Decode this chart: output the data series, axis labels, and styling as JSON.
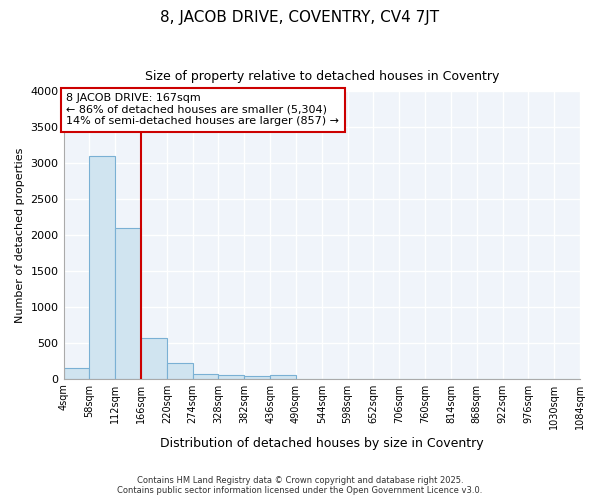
{
  "title": "8, JACOB DRIVE, COVENTRY, CV4 7JT",
  "subtitle": "Size of property relative to detached houses in Coventry",
  "xlabel": "Distribution of detached houses by size in Coventry",
  "ylabel": "Number of detached properties",
  "bar_color": "#d0e4f0",
  "bar_edge_color": "#7ab0d4",
  "background_color": "#ffffff",
  "plot_bg_color": "#f0f4fa",
  "grid_color": "#ffffff",
  "vline_x": 166,
  "vline_color": "#cc0000",
  "bins": [
    4,
    58,
    112,
    166,
    220,
    274,
    328,
    382,
    436,
    490,
    544,
    598,
    652,
    706,
    760,
    814,
    868,
    922,
    976,
    1030,
    1084
  ],
  "bin_labels": [
    "4sqm",
    "58sqm",
    "112sqm",
    "166sqm",
    "220sqm",
    "274sqm",
    "328sqm",
    "382sqm",
    "436sqm",
    "490sqm",
    "544sqm",
    "598sqm",
    "652sqm",
    "706sqm",
    "760sqm",
    "814sqm",
    "868sqm",
    "922sqm",
    "976sqm",
    "1030sqm",
    "1084sqm"
  ],
  "bar_heights": [
    140,
    3100,
    2090,
    570,
    215,
    70,
    50,
    40,
    55,
    0,
    0,
    0,
    0,
    0,
    0,
    0,
    0,
    0,
    0,
    0
  ],
  "ylim": [
    0,
    4000
  ],
  "yticks": [
    0,
    500,
    1000,
    1500,
    2000,
    2500,
    3000,
    3500,
    4000
  ],
  "annotation_title": "8 JACOB DRIVE: 167sqm",
  "annotation_line1": "← 86% of detached houses are smaller (5,304)",
  "annotation_line2": "14% of semi-detached houses are larger (857) →",
  "annotation_box_color": "#ffffff",
  "annotation_box_edge": "#cc0000",
  "footer1": "Contains HM Land Registry data © Crown copyright and database right 2025.",
  "footer2": "Contains public sector information licensed under the Open Government Licence v3.0."
}
